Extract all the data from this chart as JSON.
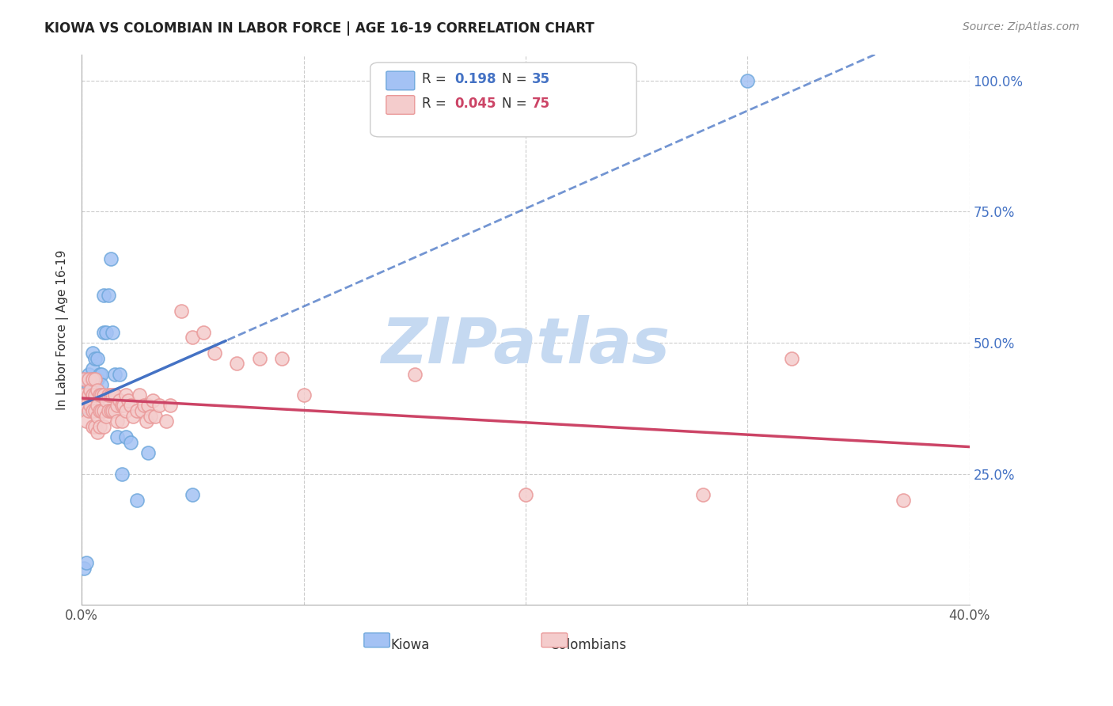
{
  "title": "KIOWA VS COLOMBIAN IN LABOR FORCE | AGE 16-19 CORRELATION CHART",
  "source": "Source: ZipAtlas.com",
  "ylabel": "In Labor Force | Age 16-19",
  "legend_kiowa": "Kiowa",
  "legend_colombians": "Colombians",
  "R_kiowa": "0.198",
  "N_kiowa": "35",
  "R_colombian": "0.045",
  "N_colombian": "75",
  "color_kiowa_fill": "#a4c2f4",
  "color_kiowa_edge": "#6fa8dc",
  "color_colombian_fill": "#f4cccc",
  "color_colombian_edge": "#ea9999",
  "color_kiowa_line": "#4472c4",
  "color_colombian_line": "#cc4466",
  "background_color": "#ffffff",
  "grid_color": "#cccccc",
  "watermark_text": "ZIPatlas",
  "watermark_color": "#c5d9f1",
  "x_min": 0.0,
  "x_max": 0.4,
  "y_min": 0.0,
  "y_max": 1.05,
  "kiowa_x": [
    0.001,
    0.002,
    0.003,
    0.003,
    0.004,
    0.004,
    0.004,
    0.005,
    0.005,
    0.005,
    0.005,
    0.006,
    0.006,
    0.006,
    0.007,
    0.007,
    0.008,
    0.009,
    0.009,
    0.01,
    0.01,
    0.011,
    0.012,
    0.013,
    0.014,
    0.015,
    0.016,
    0.017,
    0.018,
    0.02,
    0.022,
    0.025,
    0.03,
    0.05,
    0.3
  ],
  "kiowa_y": [
    0.07,
    0.08,
    0.44,
    0.42,
    0.43,
    0.41,
    0.37,
    0.48,
    0.45,
    0.43,
    0.4,
    0.47,
    0.43,
    0.4,
    0.47,
    0.43,
    0.44,
    0.44,
    0.42,
    0.59,
    0.52,
    0.52,
    0.59,
    0.66,
    0.52,
    0.44,
    0.32,
    0.44,
    0.25,
    0.32,
    0.31,
    0.2,
    0.29,
    0.21,
    1.0
  ],
  "colombian_x": [
    0.001,
    0.001,
    0.002,
    0.002,
    0.003,
    0.003,
    0.003,
    0.004,
    0.004,
    0.005,
    0.005,
    0.005,
    0.005,
    0.006,
    0.006,
    0.006,
    0.006,
    0.007,
    0.007,
    0.007,
    0.007,
    0.008,
    0.008,
    0.008,
    0.009,
    0.009,
    0.01,
    0.01,
    0.01,
    0.011,
    0.011,
    0.012,
    0.012,
    0.013,
    0.013,
    0.014,
    0.014,
    0.015,
    0.015,
    0.016,
    0.016,
    0.017,
    0.018,
    0.018,
    0.019,
    0.02,
    0.02,
    0.021,
    0.022,
    0.023,
    0.025,
    0.026,
    0.027,
    0.028,
    0.029,
    0.03,
    0.031,
    0.032,
    0.033,
    0.035,
    0.038,
    0.04,
    0.045,
    0.05,
    0.055,
    0.06,
    0.07,
    0.08,
    0.09,
    0.1,
    0.15,
    0.2,
    0.28,
    0.32,
    0.37
  ],
  "colombian_y": [
    0.43,
    0.4,
    0.38,
    0.35,
    0.43,
    0.4,
    0.37,
    0.41,
    0.38,
    0.43,
    0.4,
    0.37,
    0.34,
    0.43,
    0.4,
    0.37,
    0.34,
    0.41,
    0.38,
    0.36,
    0.33,
    0.4,
    0.37,
    0.34,
    0.4,
    0.37,
    0.4,
    0.37,
    0.34,
    0.39,
    0.36,
    0.4,
    0.37,
    0.4,
    0.37,
    0.4,
    0.37,
    0.4,
    0.37,
    0.38,
    0.35,
    0.39,
    0.38,
    0.35,
    0.38,
    0.4,
    0.37,
    0.39,
    0.38,
    0.36,
    0.37,
    0.4,
    0.37,
    0.38,
    0.35,
    0.38,
    0.36,
    0.39,
    0.36,
    0.38,
    0.35,
    0.38,
    0.56,
    0.51,
    0.52,
    0.48,
    0.46,
    0.47,
    0.47,
    0.4,
    0.44,
    0.21,
    0.21,
    0.47,
    0.2
  ]
}
